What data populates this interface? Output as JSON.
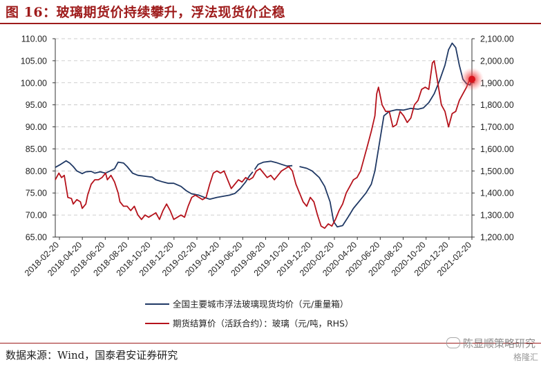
{
  "title": "图 16：玻璃期货价持续攀升，浮法现货价企稳",
  "source": "数据来源：Wind，国泰君安证券研究",
  "watermark": "陈显顺策略研究",
  "watermark2": "格隆汇",
  "colors": {
    "navy": "#1f3864",
    "red": "#b5121b",
    "title": "#9e1b1b",
    "grid": "#bfbfbf"
  },
  "chart_data": {
    "type": "line",
    "x_ticks": [
      "2018-02-20",
      "2018-04-20",
      "2018-06-20",
      "2018-08-20",
      "2018-10-20",
      "2018-12-20",
      "2019-02-20",
      "2019-04-20",
      "2019-06-20",
      "2019-08-20",
      "2019-10-20",
      "2019-12-20",
      "2020-02-20",
      "2020-04-20",
      "2020-06-20",
      "2020-08-20",
      "2020-10-20",
      "2020-12-20",
      "2021-02-20"
    ],
    "left_axis": {
      "ticks": [
        "65.00",
        "70.00",
        "75.00",
        "80.00",
        "85.00",
        "90.00",
        "95.00",
        "100.00",
        "105.00",
        "110.00"
      ],
      "ylim": [
        65,
        110
      ]
    },
    "right_axis": {
      "ticks": [
        "1,200.00",
        "1,300.00",
        "1,400.00",
        "1,500.00",
        "1,600.00",
        "1,700.00",
        "1,800.00",
        "1,900.00",
        "2,000.00",
        "2,100.00"
      ],
      "ylim": [
        1200,
        2100
      ]
    },
    "grid": "dashed horizontal",
    "legend_position": "bottom",
    "series": [
      {
        "name": "全国主要城市浮法玻璃现货均价（元/重量箱）",
        "axis": "left",
        "color": "#1f3864",
        "segments": [
          [
            [
              0,
              80.8
            ],
            [
              0.3,
              81.5
            ],
            [
              0.6,
              82.3
            ],
            [
              0.8,
              81.8
            ],
            [
              1,
              81.0
            ],
            [
              1.2,
              80.0
            ],
            [
              1.5,
              79.4
            ],
            [
              1.7,
              79.8
            ],
            [
              2,
              79.9
            ],
            [
              2.2,
              79.5
            ],
            [
              2.5,
              79.8
            ],
            [
              2.8,
              79.5
            ],
            [
              3,
              79.9
            ],
            [
              3.3,
              80.5
            ],
            [
              3.5,
              82.0
            ],
            [
              3.8,
              81.8
            ],
            [
              4,
              81.0
            ],
            [
              4.3,
              79.5
            ],
            [
              4.6,
              79.0
            ],
            [
              5,
              78.8
            ],
            [
              5.4,
              78.6
            ],
            [
              5.6,
              78.0
            ],
            [
              6,
              77.5
            ],
            [
              6.3,
              77.2
            ],
            [
              6.6,
              77.2
            ],
            [
              7,
              76.5
            ],
            [
              7.3,
              75.5
            ],
            [
              7.6,
              74.8
            ],
            [
              8,
              74.5
            ],
            [
              8.3,
              74.0
            ],
            [
              8.6,
              73.6
            ],
            [
              9,
              74.0
            ],
            [
              9.4,
              74.3
            ],
            [
              9.7,
              74.5
            ],
            [
              10,
              74.9
            ],
            [
              10.3,
              76.0
            ],
            [
              10.6,
              77.5
            ],
            [
              10.8,
              78.8
            ],
            [
              11,
              79.8
            ]
          ],
          [
            [
              11.1,
              80.3
            ],
            [
              11.3,
              81.5
            ],
            [
              11.6,
              82.0
            ],
            [
              12,
              82.2
            ],
            [
              12.3,
              81.9
            ],
            [
              12.6,
              81.5
            ],
            [
              12.9,
              81.1
            ],
            [
              13.2,
              81.2
            ]
          ],
          [
            [
              13.6,
              81.0
            ],
            [
              14,
              80.6
            ],
            [
              14.3,
              80.0
            ],
            [
              14.7,
              78.5
            ],
            [
              15,
              76.5
            ],
            [
              15.3,
              73.0
            ],
            [
              15.5,
              68.5
            ],
            [
              15.7,
              67.3
            ],
            [
              16,
              67.6
            ],
            [
              16.3,
              69.5
            ],
            [
              16.6,
              71.5
            ],
            [
              17,
              73.5
            ],
            [
              17.3,
              75.0
            ],
            [
              17.6,
              77.0
            ],
            [
              17.8,
              80.0
            ],
            [
              18,
              85.0
            ],
            [
              18.3,
              92.5
            ],
            [
              18.6,
              93.5
            ],
            [
              19,
              93.9
            ],
            [
              19.4,
              93.8
            ],
            [
              19.8,
              94.2
            ],
            [
              20.2,
              94.0
            ],
            [
              20.5,
              94.3
            ],
            [
              20.8,
              95.5
            ],
            [
              21.1,
              97.5
            ],
            [
              21.4,
              100.5
            ],
            [
              21.7,
              104.0
            ],
            [
              21.9,
              107.5
            ],
            [
              22.1,
              109.0
            ],
            [
              22.3,
              108.0
            ],
            [
              22.5,
              104.0
            ],
            [
              22.7,
              100.8
            ],
            [
              22.9,
              99.8
            ],
            [
              23.1,
              99.5
            ],
            [
              23.2,
              100.8
            ]
          ]
        ]
      },
      {
        "name": "期货结算价（活跃合约）：玻璃（元/吨，RHS）",
        "axis": "right",
        "color": "#b5121b",
        "segments": [
          [
            [
              0,
              1460
            ],
            [
              0.2,
              1490
            ],
            [
              0.35,
              1470
            ],
            [
              0.5,
              1480
            ],
            [
              0.7,
              1380
            ],
            [
              0.9,
              1375
            ],
            [
              1,
              1350
            ],
            [
              1.2,
              1370
            ],
            [
              1.4,
              1360
            ],
            [
              1.5,
              1330
            ],
            [
              1.7,
              1350
            ],
            [
              1.8,
              1390
            ],
            [
              2,
              1440
            ],
            [
              2.2,
              1460
            ],
            [
              2.4,
              1460
            ],
            [
              2.6,
              1470
            ],
            [
              2.8,
              1490
            ],
            [
              2.9,
              1460
            ],
            [
              3,
              1470
            ],
            [
              3.1,
              1480
            ],
            [
              3.3,
              1450
            ],
            [
              3.5,
              1400
            ],
            [
              3.6,
              1360
            ],
            [
              3.8,
              1340
            ],
            [
              4,
              1340
            ],
            [
              4.2,
              1320
            ],
            [
              4.4,
              1340
            ],
            [
              4.6,
              1300
            ],
            [
              4.8,
              1280
            ],
            [
              5,
              1300
            ],
            [
              5.2,
              1290
            ],
            [
              5.4,
              1300
            ],
            [
              5.6,
              1310
            ],
            [
              5.8,
              1280
            ],
            [
              6,
              1320
            ],
            [
              6.2,
              1350
            ],
            [
              6.4,
              1320
            ],
            [
              6.6,
              1280
            ],
            [
              6.8,
              1290
            ],
            [
              7,
              1300
            ],
            [
              7.2,
              1290
            ],
            [
              7.4,
              1340
            ],
            [
              7.6,
              1380
            ],
            [
              7.8,
              1390
            ],
            [
              8,
              1380
            ],
            [
              8.2,
              1370
            ],
            [
              8.4,
              1380
            ],
            [
              8.6,
              1440
            ],
            [
              8.8,
              1490
            ],
            [
              9,
              1500
            ],
            [
              9.2,
              1490
            ],
            [
              9.4,
              1500
            ],
            [
              9.6,
              1460
            ],
            [
              9.8,
              1420
            ],
            [
              10,
              1440
            ],
            [
              10.2,
              1460
            ],
            [
              10.4,
              1450
            ],
            [
              10.6,
              1470
            ],
            [
              10.8,
              1460
            ],
            [
              11,
              1470
            ],
            [
              11.2,
              1500
            ],
            [
              11.4,
              1510
            ],
            [
              11.6,
              1490
            ],
            [
              11.8,
              1470
            ],
            [
              12,
              1480
            ],
            [
              12.2,
              1460
            ],
            [
              12.4,
              1480
            ],
            [
              12.6,
              1500
            ],
            [
              12.8,
              1510
            ],
            [
              13,
              1520
            ],
            [
              13.2,
              1500
            ],
            [
              13.4,
              1440
            ],
            [
              13.6,
              1400
            ],
            [
              13.8,
              1360
            ],
            [
              14,
              1340
            ],
            [
              14.2,
              1380
            ],
            [
              14.4,
              1360
            ],
            [
              14.6,
              1300
            ],
            [
              14.8,
              1250
            ],
            [
              15,
              1240
            ],
            [
              15.2,
              1260
            ],
            [
              15.4,
              1250
            ],
            [
              15.6,
              1280
            ],
            [
              15.8,
              1320
            ],
            [
              16,
              1350
            ],
            [
              16.2,
              1400
            ],
            [
              16.4,
              1430
            ],
            [
              16.6,
              1460
            ],
            [
              16.8,
              1470
            ],
            [
              17,
              1500
            ],
            [
              17.2,
              1560
            ],
            [
              17.4,
              1620
            ],
            [
              17.6,
              1680
            ],
            [
              17.8,
              1750
            ],
            [
              17.9,
              1850
            ],
            [
              18,
              1880
            ],
            [
              18.2,
              1800
            ],
            [
              18.4,
              1770
            ],
            [
              18.6,
              1770
            ],
            [
              18.8,
              1700
            ],
            [
              19,
              1710
            ],
            [
              19.2,
              1770
            ],
            [
              19.4,
              1750
            ],
            [
              19.6,
              1720
            ],
            [
              19.8,
              1740
            ],
            [
              20,
              1800
            ],
            [
              20.2,
              1820
            ],
            [
              20.4,
              1870
            ],
            [
              20.6,
              1880
            ],
            [
              20.8,
              1870
            ],
            [
              21,
              1990
            ],
            [
              21.1,
              2000
            ],
            [
              21.3,
              1900
            ],
            [
              21.5,
              1800
            ],
            [
              21.7,
              1770
            ],
            [
              21.9,
              1700
            ],
            [
              22.1,
              1760
            ],
            [
              22.3,
              1770
            ],
            [
              22.5,
              1820
            ],
            [
              22.7,
              1850
            ],
            [
              22.9,
              1880
            ],
            [
              23.1,
              1920
            ],
            [
              23.2,
              1910
            ]
          ]
        ]
      }
    ]
  }
}
